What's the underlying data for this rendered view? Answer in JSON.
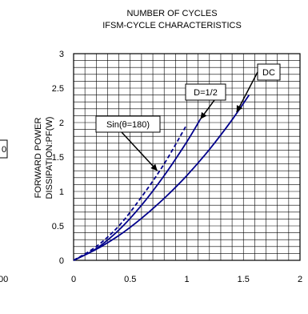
{
  "header": {
    "line1": "NUMBER OF CYCLES",
    "line2": "IFSM-CYCLE CHARACTERISTICS"
  },
  "left_fragments": {
    "box_char": "0",
    "bottom_label": "00"
  },
  "chart_data": {
    "type": "line",
    "title": "",
    "xlabel": "",
    "ylabel": "FORWARD POWER DISSIPATION:PF(W)",
    "ylabel_lines": [
      "FORWARD POWER",
      "DISSIPATION:PF(W)"
    ],
    "xlim": [
      0,
      2
    ],
    "ylim": [
      0,
      3
    ],
    "x_ticks": [
      "0",
      "0.5",
      "1",
      "1.5",
      "2"
    ],
    "y_ticks": [
      "0",
      "0.5",
      "1",
      "1.5",
      "2",
      "2.5",
      "3"
    ],
    "grid": true,
    "series": [
      {
        "name": "DC",
        "style": "solid",
        "color": "#00008b",
        "x": [
          0,
          0.2,
          0.4,
          0.6,
          0.8,
          1.0,
          1.2,
          1.4,
          1.55
        ],
        "y": [
          0,
          0.16,
          0.36,
          0.61,
          0.9,
          1.23,
          1.61,
          2.04,
          2.4
        ]
      },
      {
        "name": "D=1/2",
        "style": "solid",
        "color": "#00008b",
        "x": [
          0,
          0.2,
          0.4,
          0.6,
          0.8,
          1.0,
          1.12
        ],
        "y": [
          0,
          0.17,
          0.44,
          0.8,
          1.23,
          1.72,
          2.05
        ]
      },
      {
        "name": "Sin(θ=180)",
        "style": "dashed",
        "color": "#00008b",
        "x": [
          0,
          0.2,
          0.4,
          0.6,
          0.8,
          1.0
        ],
        "y": [
          0,
          0.2,
          0.5,
          0.92,
          1.4,
          1.97
        ]
      }
    ],
    "annotations": [
      {
        "text": "DC",
        "arrow_to": [
          1.44,
          2.15
        ]
      },
      {
        "text": "D=1/2",
        "arrow_to": [
          1.12,
          2.05
        ]
      },
      {
        "text": "Sin(θ=180)",
        "arrow_to": [
          0.74,
          1.3
        ]
      }
    ]
  }
}
